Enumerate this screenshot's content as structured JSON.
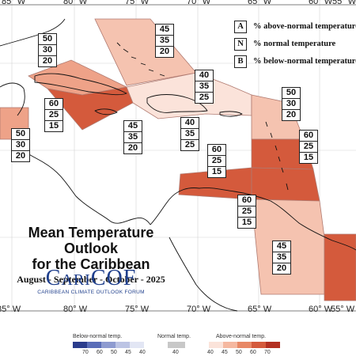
{
  "map": {
    "title_line1": "Mean Temperature Outlook",
    "title_line2": "for the Caribbean",
    "period": "August - September - October - 2025",
    "longitude_labels": [
      "85° W",
      "80° W",
      "75° W",
      "70° W",
      "65° W",
      "60° W",
      "55° W"
    ],
    "logo": {
      "name": "CariCOF",
      "subtitle": "CARIBBEAN CLIMATE OUTLOOK FORUM"
    },
    "abn_legend": [
      {
        "letter": "A",
        "text": "% above-normal temperature"
      },
      {
        "letter": "N",
        "text": "% normal temperature"
      },
      {
        "letter": "B",
        "text": "% below-normal temperature"
      }
    ],
    "region_boxes": [
      {
        "id": "bahamas",
        "A": "45",
        "N": "35",
        "B": "20"
      },
      {
        "id": "western-cuba",
        "A": "50",
        "N": "30",
        "B": "20"
      },
      {
        "id": "cuba-jamaica",
        "A": "60",
        "N": "25",
        "B": "15"
      },
      {
        "id": "belize",
        "A": "50",
        "N": "30",
        "B": "20"
      },
      {
        "id": "jamaica",
        "A": "45",
        "N": "35",
        "B": "20"
      },
      {
        "id": "hispaniola-north",
        "A": "40",
        "N": "35",
        "B": "25"
      },
      {
        "id": "hispaniola-south",
        "A": "40",
        "N": "35",
        "B": "25"
      },
      {
        "id": "leewards",
        "A": "50",
        "N": "30",
        "B": "20"
      },
      {
        "id": "caribbean-central",
        "A": "60",
        "N": "25",
        "B": "15"
      },
      {
        "id": "windwards",
        "A": "60",
        "N": "25",
        "B": "15"
      },
      {
        "id": "trinidad",
        "A": "60",
        "N": "25",
        "B": "15"
      },
      {
        "id": "guyanas",
        "A": "45",
        "N": "35",
        "B": "20"
      }
    ],
    "colorbar": {
      "below_label": "Below-normal temp.",
      "normal_label": "Normal temp.",
      "above_label": "Above-normal temp.",
      "below_ticks": [
        "70",
        "60",
        "50",
        "45",
        "40"
      ],
      "normal_ticks": [
        "40"
      ],
      "above_ticks": [
        "40",
        "45",
        "50",
        "60",
        "70"
      ],
      "below_colors": [
        "#2b3c8c",
        "#5a6db8",
        "#8e9bd0",
        "#bcc4e4",
        "#e2e6f4"
      ],
      "normal_colors": [
        "#c8c8c8"
      ],
      "above_colors": [
        "#fbe3da",
        "#f5b8a0",
        "#e88866",
        "#d45a3c",
        "#b33022"
      ]
    },
    "region_colors": {
      "prob40": "#fbe3da",
      "prob45": "#f5c3b0",
      "prob50": "#eea288",
      "prob60": "#d45a3c"
    }
  }
}
